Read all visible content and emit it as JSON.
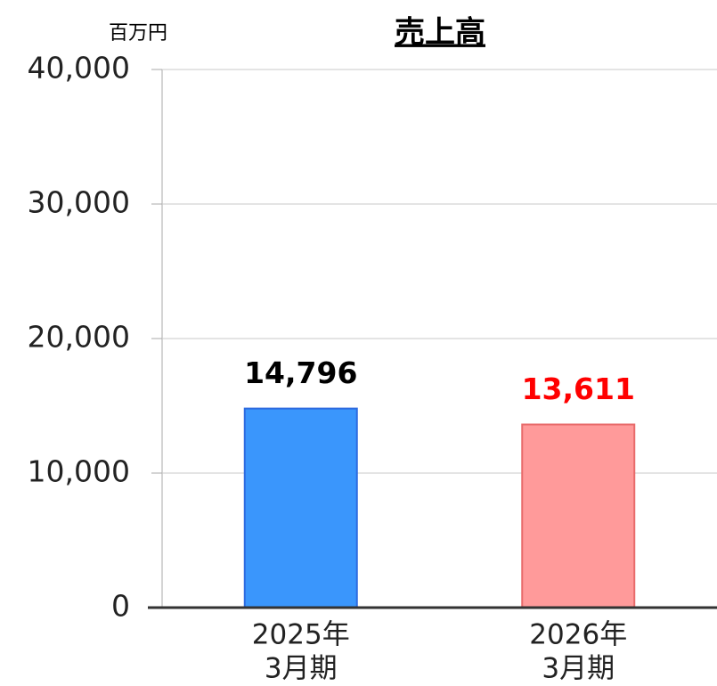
{
  "chart_data": {
    "type": "bar",
    "title": "売上高",
    "y_unit": "百万円",
    "categories": [
      [
        "2025年",
        "3月期"
      ],
      [
        "2026年",
        "3月期"
      ]
    ],
    "values": [
      14796,
      13611
    ],
    "value_labels": [
      "14,796",
      "13,611"
    ],
    "colors": [
      "#3a96fc",
      "#ff9a9a"
    ],
    "edge_colors": [
      "#2d6be0",
      "#e86a6a"
    ],
    "value_label_colors": [
      "#000000",
      "#ff0000"
    ],
    "ylim": [
      0,
      40000
    ],
    "yticks": [
      0,
      {
        "value": 10000,
        "label": "10,000"
      },
      {
        "value": 20000,
        "label": "20,000"
      },
      {
        "value": 30000,
        "label": "30,000"
      },
      {
        "value": 40000,
        "label": "40,000"
      }
    ],
    "grid": true
  }
}
